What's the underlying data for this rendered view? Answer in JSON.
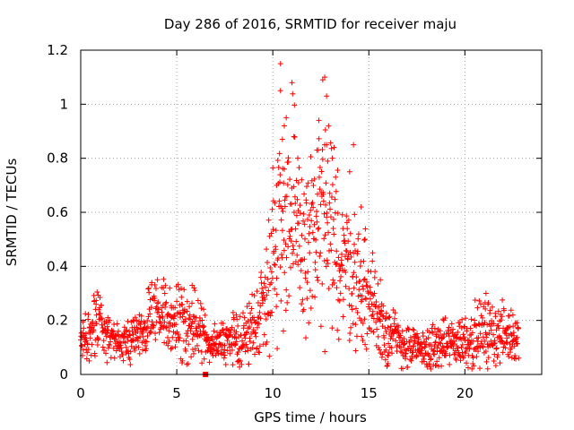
{
  "chart_data": {
    "type": "scatter",
    "title": "Day 286 of 2016, SRMTID for receiver maju",
    "xlabel": "GPS time / hours",
    "ylabel": "SRMTID / TECUs",
    "xlim": [
      0,
      24
    ],
    "ylim": [
      0,
      1.2
    ],
    "x_ticks": [
      0,
      5,
      10,
      15,
      20
    ],
    "x_tick_labels": [
      "0",
      "5",
      "10",
      "15",
      "20"
    ],
    "y_ticks": [
      0,
      0.2,
      0.4,
      0.6,
      0.8,
      1.0,
      1.2
    ],
    "y_tick_labels": [
      "0",
      "0.2",
      "0.4",
      "0.6",
      "0.8",
      "1",
      "1.2"
    ],
    "grid": true,
    "marker": "+",
    "series_color": "#ff0000",
    "outlier": {
      "x": 6.5,
      "y": 0.0
    },
    "envelope": [
      {
        "x": 0.0,
        "y": 0.12,
        "spread": 0.03
      },
      {
        "x": 0.5,
        "y": 0.14,
        "spread": 0.05
      },
      {
        "x": 0.8,
        "y": 0.2,
        "spread": 0.06
      },
      {
        "x": 1.3,
        "y": 0.15,
        "spread": 0.04
      },
      {
        "x": 2.0,
        "y": 0.11,
        "spread": 0.03
      },
      {
        "x": 2.5,
        "y": 0.12,
        "spread": 0.04
      },
      {
        "x": 3.0,
        "y": 0.15,
        "spread": 0.05
      },
      {
        "x": 3.5,
        "y": 0.2,
        "spread": 0.06
      },
      {
        "x": 4.0,
        "y": 0.24,
        "spread": 0.06
      },
      {
        "x": 4.5,
        "y": 0.22,
        "spread": 0.06
      },
      {
        "x": 5.0,
        "y": 0.2,
        "spread": 0.06
      },
      {
        "x": 5.5,
        "y": 0.15,
        "spread": 0.06
      },
      {
        "x": 6.0,
        "y": 0.18,
        "spread": 0.07
      },
      {
        "x": 6.5,
        "y": 0.13,
        "spread": 0.04
      },
      {
        "x": 7.5,
        "y": 0.12,
        "spread": 0.04
      },
      {
        "x": 8.5,
        "y": 0.13,
        "spread": 0.05
      },
      {
        "x": 9.2,
        "y": 0.2,
        "spread": 0.07
      },
      {
        "x": 9.6,
        "y": 0.3,
        "spread": 0.1
      },
      {
        "x": 10.0,
        "y": 0.45,
        "spread": 0.15
      },
      {
        "x": 10.5,
        "y": 0.6,
        "spread": 0.22
      },
      {
        "x": 11.0,
        "y": 0.55,
        "spread": 0.2
      },
      {
        "x": 11.5,
        "y": 0.45,
        "spread": 0.15
      },
      {
        "x": 12.0,
        "y": 0.5,
        "spread": 0.18
      },
      {
        "x": 12.5,
        "y": 0.55,
        "spread": 0.2
      },
      {
        "x": 13.0,
        "y": 0.5,
        "spread": 0.17
      },
      {
        "x": 13.5,
        "y": 0.45,
        "spread": 0.15
      },
      {
        "x": 14.0,
        "y": 0.4,
        "spread": 0.13
      },
      {
        "x": 14.5,
        "y": 0.32,
        "spread": 0.1
      },
      {
        "x": 15.0,
        "y": 0.28,
        "spread": 0.1
      },
      {
        "x": 15.5,
        "y": 0.22,
        "spread": 0.08
      },
      {
        "x": 16.0,
        "y": 0.15,
        "spread": 0.06
      },
      {
        "x": 17.0,
        "y": 0.1,
        "spread": 0.04
      },
      {
        "x": 18.0,
        "y": 0.09,
        "spread": 0.04
      },
      {
        "x": 19.0,
        "y": 0.11,
        "spread": 0.04
      },
      {
        "x": 20.0,
        "y": 0.13,
        "spread": 0.05
      },
      {
        "x": 21.0,
        "y": 0.15,
        "spread": 0.06
      },
      {
        "x": 22.0,
        "y": 0.15,
        "spread": 0.05
      },
      {
        "x": 22.8,
        "y": 0.14,
        "spread": 0.04
      }
    ],
    "notable_points": [
      {
        "x": 10.4,
        "y": 1.15
      },
      {
        "x": 10.4,
        "y": 1.05
      },
      {
        "x": 10.5,
        "y": 0.87
      },
      {
        "x": 10.6,
        "y": 0.92
      },
      {
        "x": 10.7,
        "y": 0.95
      },
      {
        "x": 11.0,
        "y": 1.08
      },
      {
        "x": 11.1,
        "y": 0.88
      },
      {
        "x": 11.3,
        "y": 0.8
      },
      {
        "x": 11.5,
        "y": 0.72
      },
      {
        "x": 12.4,
        "y": 0.94
      },
      {
        "x": 12.6,
        "y": 1.09
      },
      {
        "x": 12.7,
        "y": 1.1
      },
      {
        "x": 12.8,
        "y": 1.03
      },
      {
        "x": 12.7,
        "y": 0.85
      },
      {
        "x": 12.8,
        "y": 0.85
      },
      {
        "x": 12.3,
        "y": 0.83
      },
      {
        "x": 13.1,
        "y": 0.8
      },
      {
        "x": 14.2,
        "y": 0.85
      },
      {
        "x": 14.0,
        "y": 0.75
      },
      {
        "x": 10.6,
        "y": 0.76
      },
      {
        "x": 10.2,
        "y": 0.7
      },
      {
        "x": 14.6,
        "y": 0.62
      },
      {
        "x": 14.8,
        "y": 0.5
      },
      {
        "x": 15.2,
        "y": 0.45
      },
      {
        "x": 15.6,
        "y": 0.35
      },
      {
        "x": 5.8,
        "y": 0.33
      },
      {
        "x": 5.9,
        "y": 0.32
      },
      {
        "x": 3.7,
        "y": 0.34
      },
      {
        "x": 4.3,
        "y": 0.32
      },
      {
        "x": 21.1,
        "y": 0.3
      },
      {
        "x": 21.2,
        "y": 0.26
      },
      {
        "x": 0.7,
        "y": 0.27
      },
      {
        "x": 0.8,
        "y": 0.26
      },
      {
        "x": 16.0,
        "y": 0.04
      },
      {
        "x": 5.3,
        "y": 0.05
      },
      {
        "x": 8.1,
        "y": 0.22
      },
      {
        "x": 18.9,
        "y": 0.2
      },
      {
        "x": 22.5,
        "y": 0.22
      }
    ]
  }
}
